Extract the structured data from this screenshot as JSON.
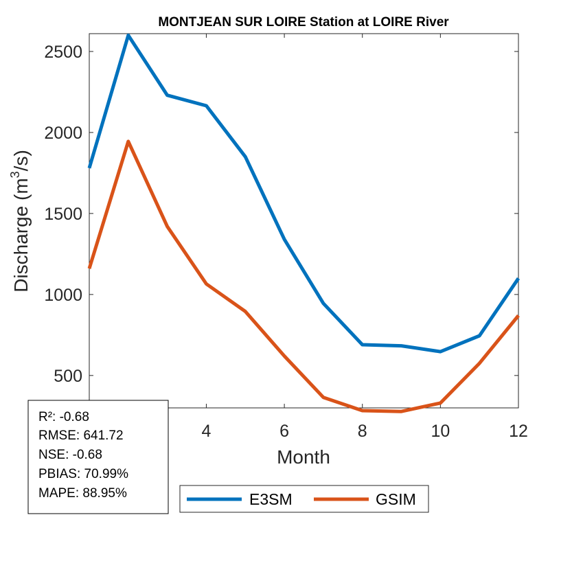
{
  "chart_data": {
    "type": "line",
    "title": "MONTJEAN SUR LOIRE  Station at  LOIRE  River",
    "xlabel": "Month",
    "ylabel_main": "Discharge (m",
    "ylabel_sup": "3",
    "ylabel_end": "/s)",
    "xlim": [
      1,
      12
    ],
    "ylim": [
      300,
      2610
    ],
    "xticks": [
      4,
      6,
      8,
      10,
      12
    ],
    "yticks": [
      500,
      1000,
      1500,
      2000,
      2500
    ],
    "grid": false,
    "legend_position": "bottom-center",
    "x": [
      1,
      2,
      3,
      4,
      5,
      6,
      7,
      8,
      9,
      10,
      11,
      12
    ],
    "series": [
      {
        "name": "E3SM",
        "color": "#0072BD",
        "values": [
          1780,
          2600,
          2230,
          2165,
          1850,
          1340,
          945,
          690,
          683,
          647,
          745,
          1100
        ]
      },
      {
        "name": "GSIM",
        "color": "#D95319",
        "values": [
          1160,
          1945,
          1420,
          1065,
          895,
          620,
          365,
          283,
          278,
          330,
          575,
          870
        ]
      }
    ],
    "stats": [
      "R²: -0.68",
      "RMSE: 641.72",
      "NSE: -0.68",
      "PBIAS: 70.99%",
      "MAPE: 88.95%"
    ]
  }
}
